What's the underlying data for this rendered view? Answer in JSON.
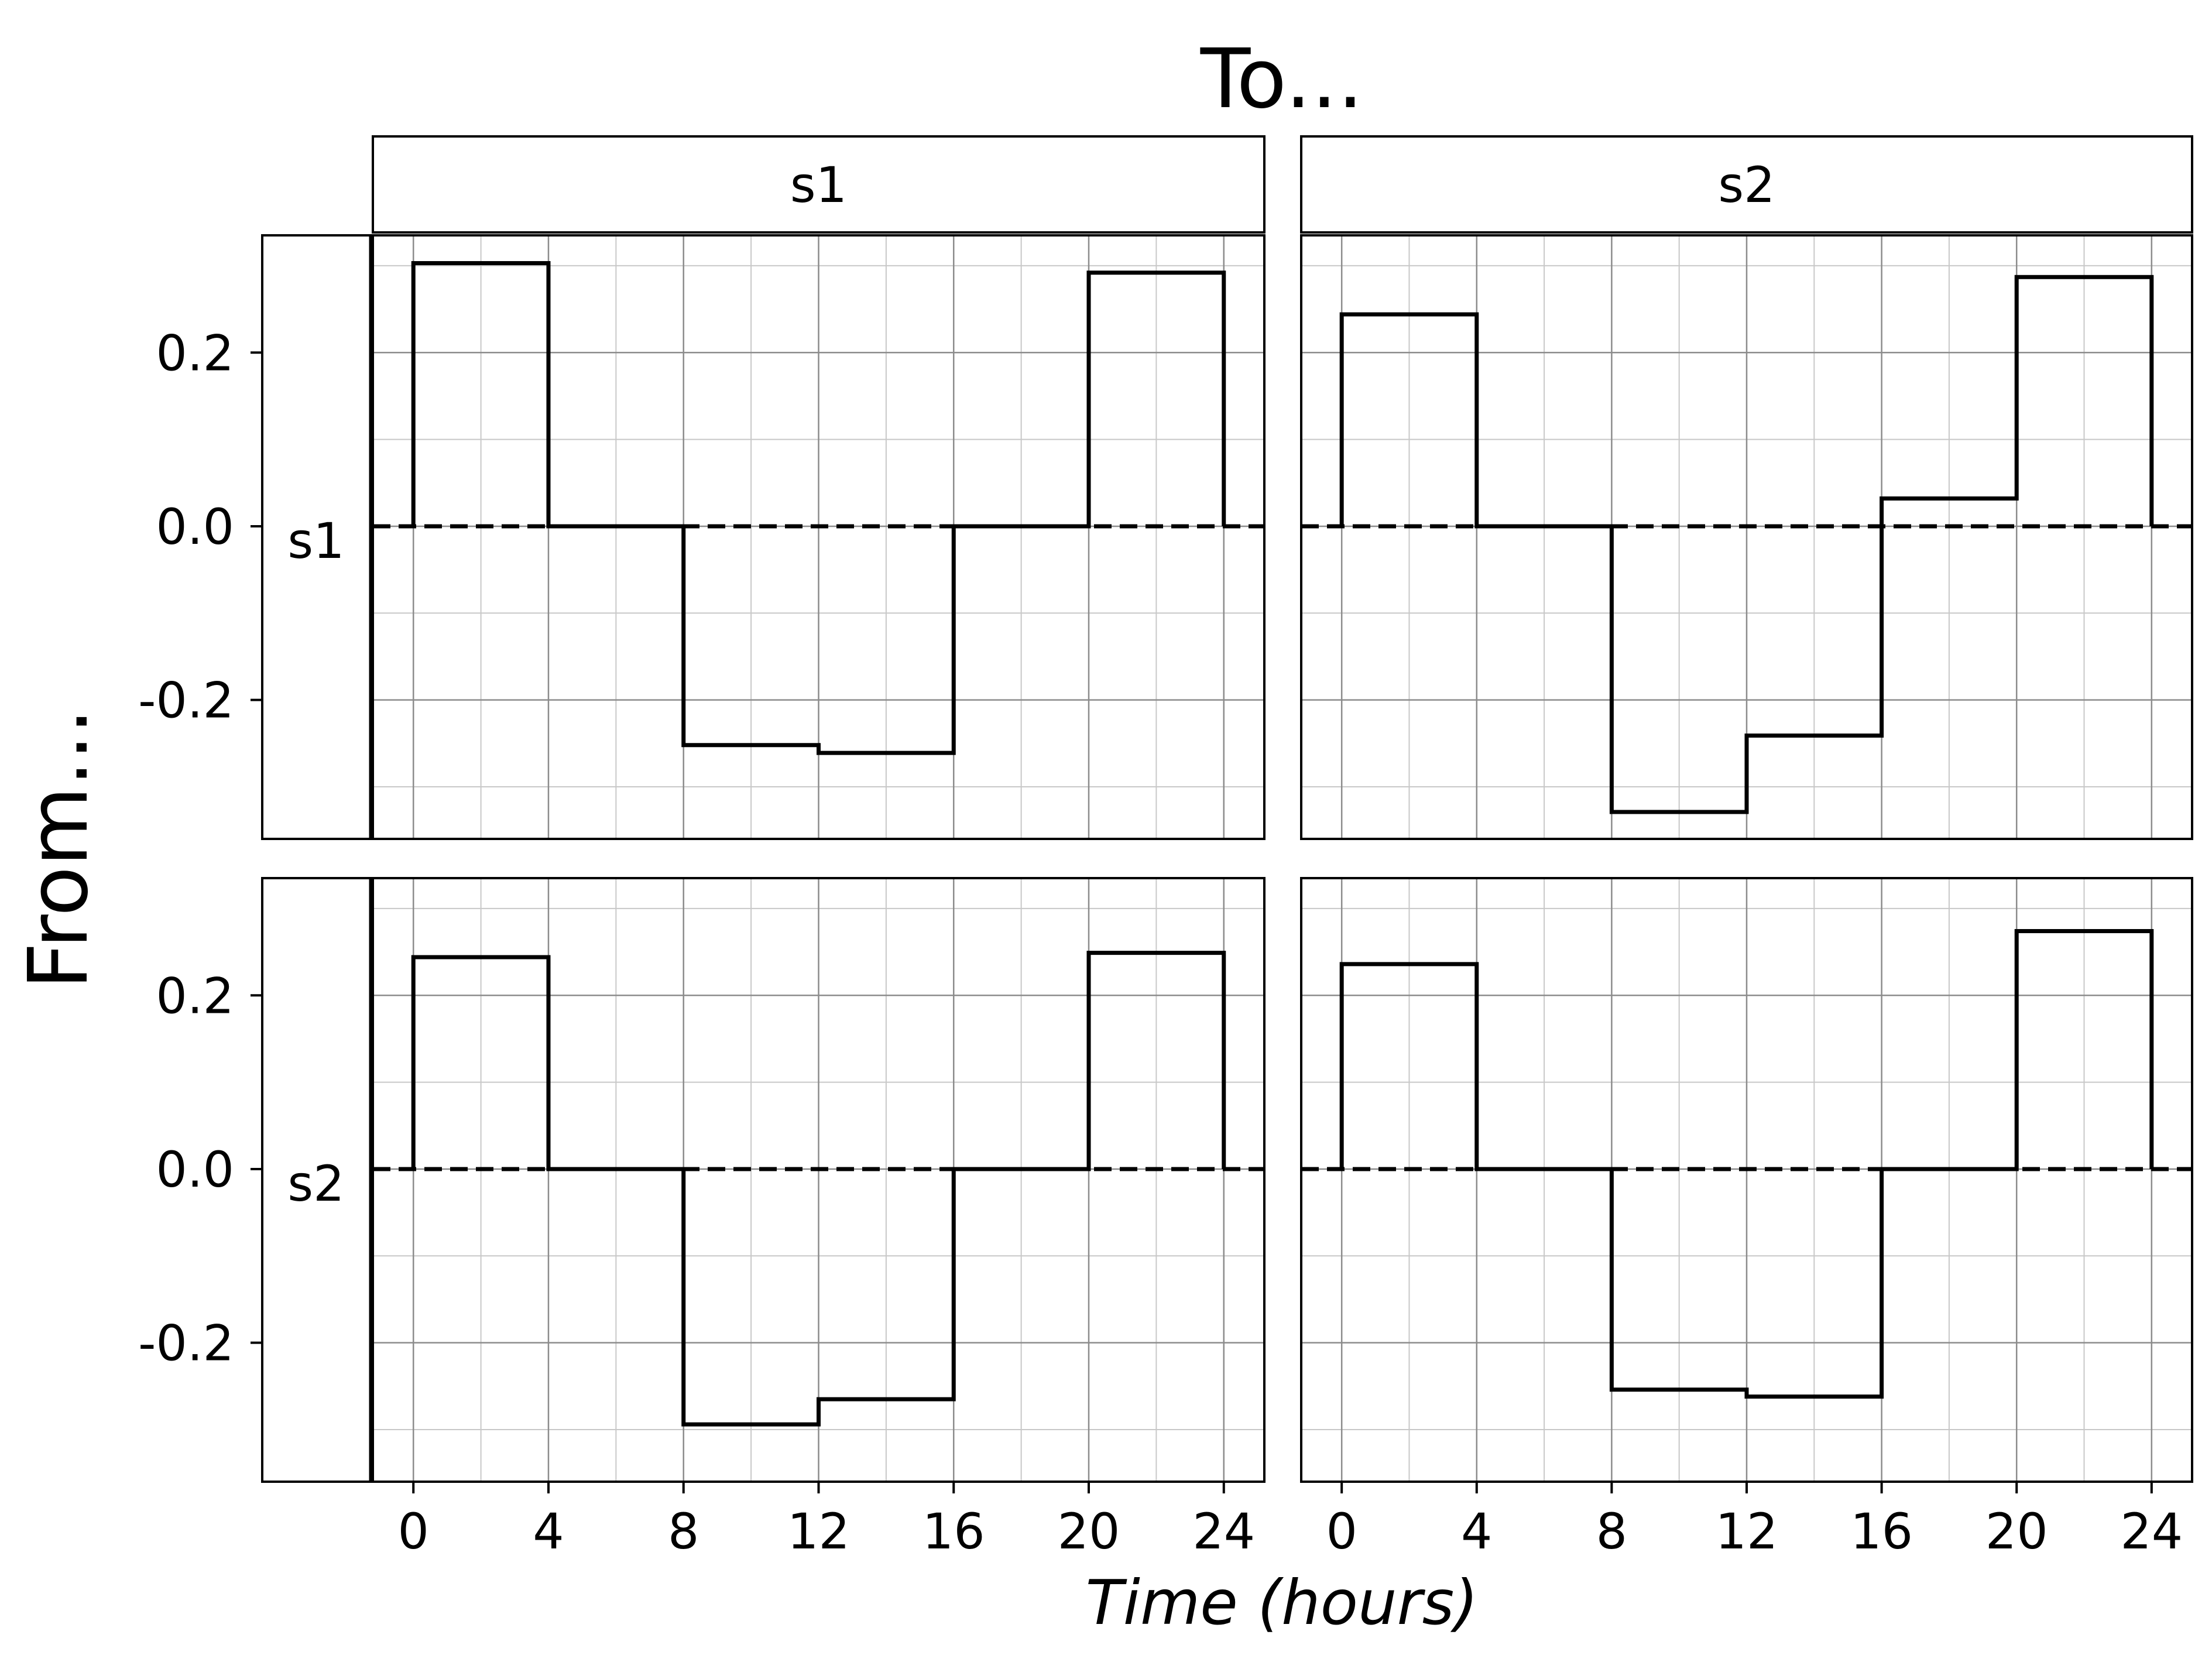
{
  "chart_data": {
    "type": "line",
    "step": "post",
    "title": "To...",
    "xlabel": "Time (hours)",
    "ylabel": "From...",
    "column_labels": [
      "s1",
      "s2"
    ],
    "row_labels": [
      "s1",
      "s2"
    ],
    "xticks": [
      0,
      4,
      8,
      12,
      16,
      20,
      24
    ],
    "xtick_labels": [
      "0",
      "4",
      "8",
      "12",
      "16",
      "20",
      "24"
    ],
    "yticks": [
      0.2,
      0.0,
      -0.2
    ],
    "ytick_labels": [
      "0.2",
      "0.0",
      "-0.2"
    ],
    "xlim": [
      -1.2,
      25.2
    ],
    "ylim": [
      -0.36,
      0.335
    ],
    "grid": true,
    "reference_line": {
      "y": 0.0,
      "style": "dashed"
    },
    "x": [
      0,
      4,
      8,
      12,
      16,
      20,
      24
    ],
    "panels": [
      {
        "from": "s1",
        "to": "s1",
        "values": [
          0.303,
          0.0,
          -0.252,
          -0.261,
          0.0,
          0.292
        ]
      },
      {
        "from": "s1",
        "to": "s2",
        "values": [
          0.244,
          0.0,
          -0.329,
          -0.241,
          0.032,
          0.287
        ]
      },
      {
        "from": "s2",
        "to": "s1",
        "values": [
          0.244,
          0.0,
          -0.294,
          -0.265,
          0.0,
          0.249
        ]
      },
      {
        "from": "s2",
        "to": "s2",
        "values": [
          0.236,
          0.0,
          -0.254,
          -0.262,
          0.0,
          0.274
        ]
      }
    ],
    "colors": {
      "line": "#000000",
      "grid_major": "#8c8c8c",
      "grid_minor": "#c8c8c8",
      "frame": "#000000"
    }
  }
}
